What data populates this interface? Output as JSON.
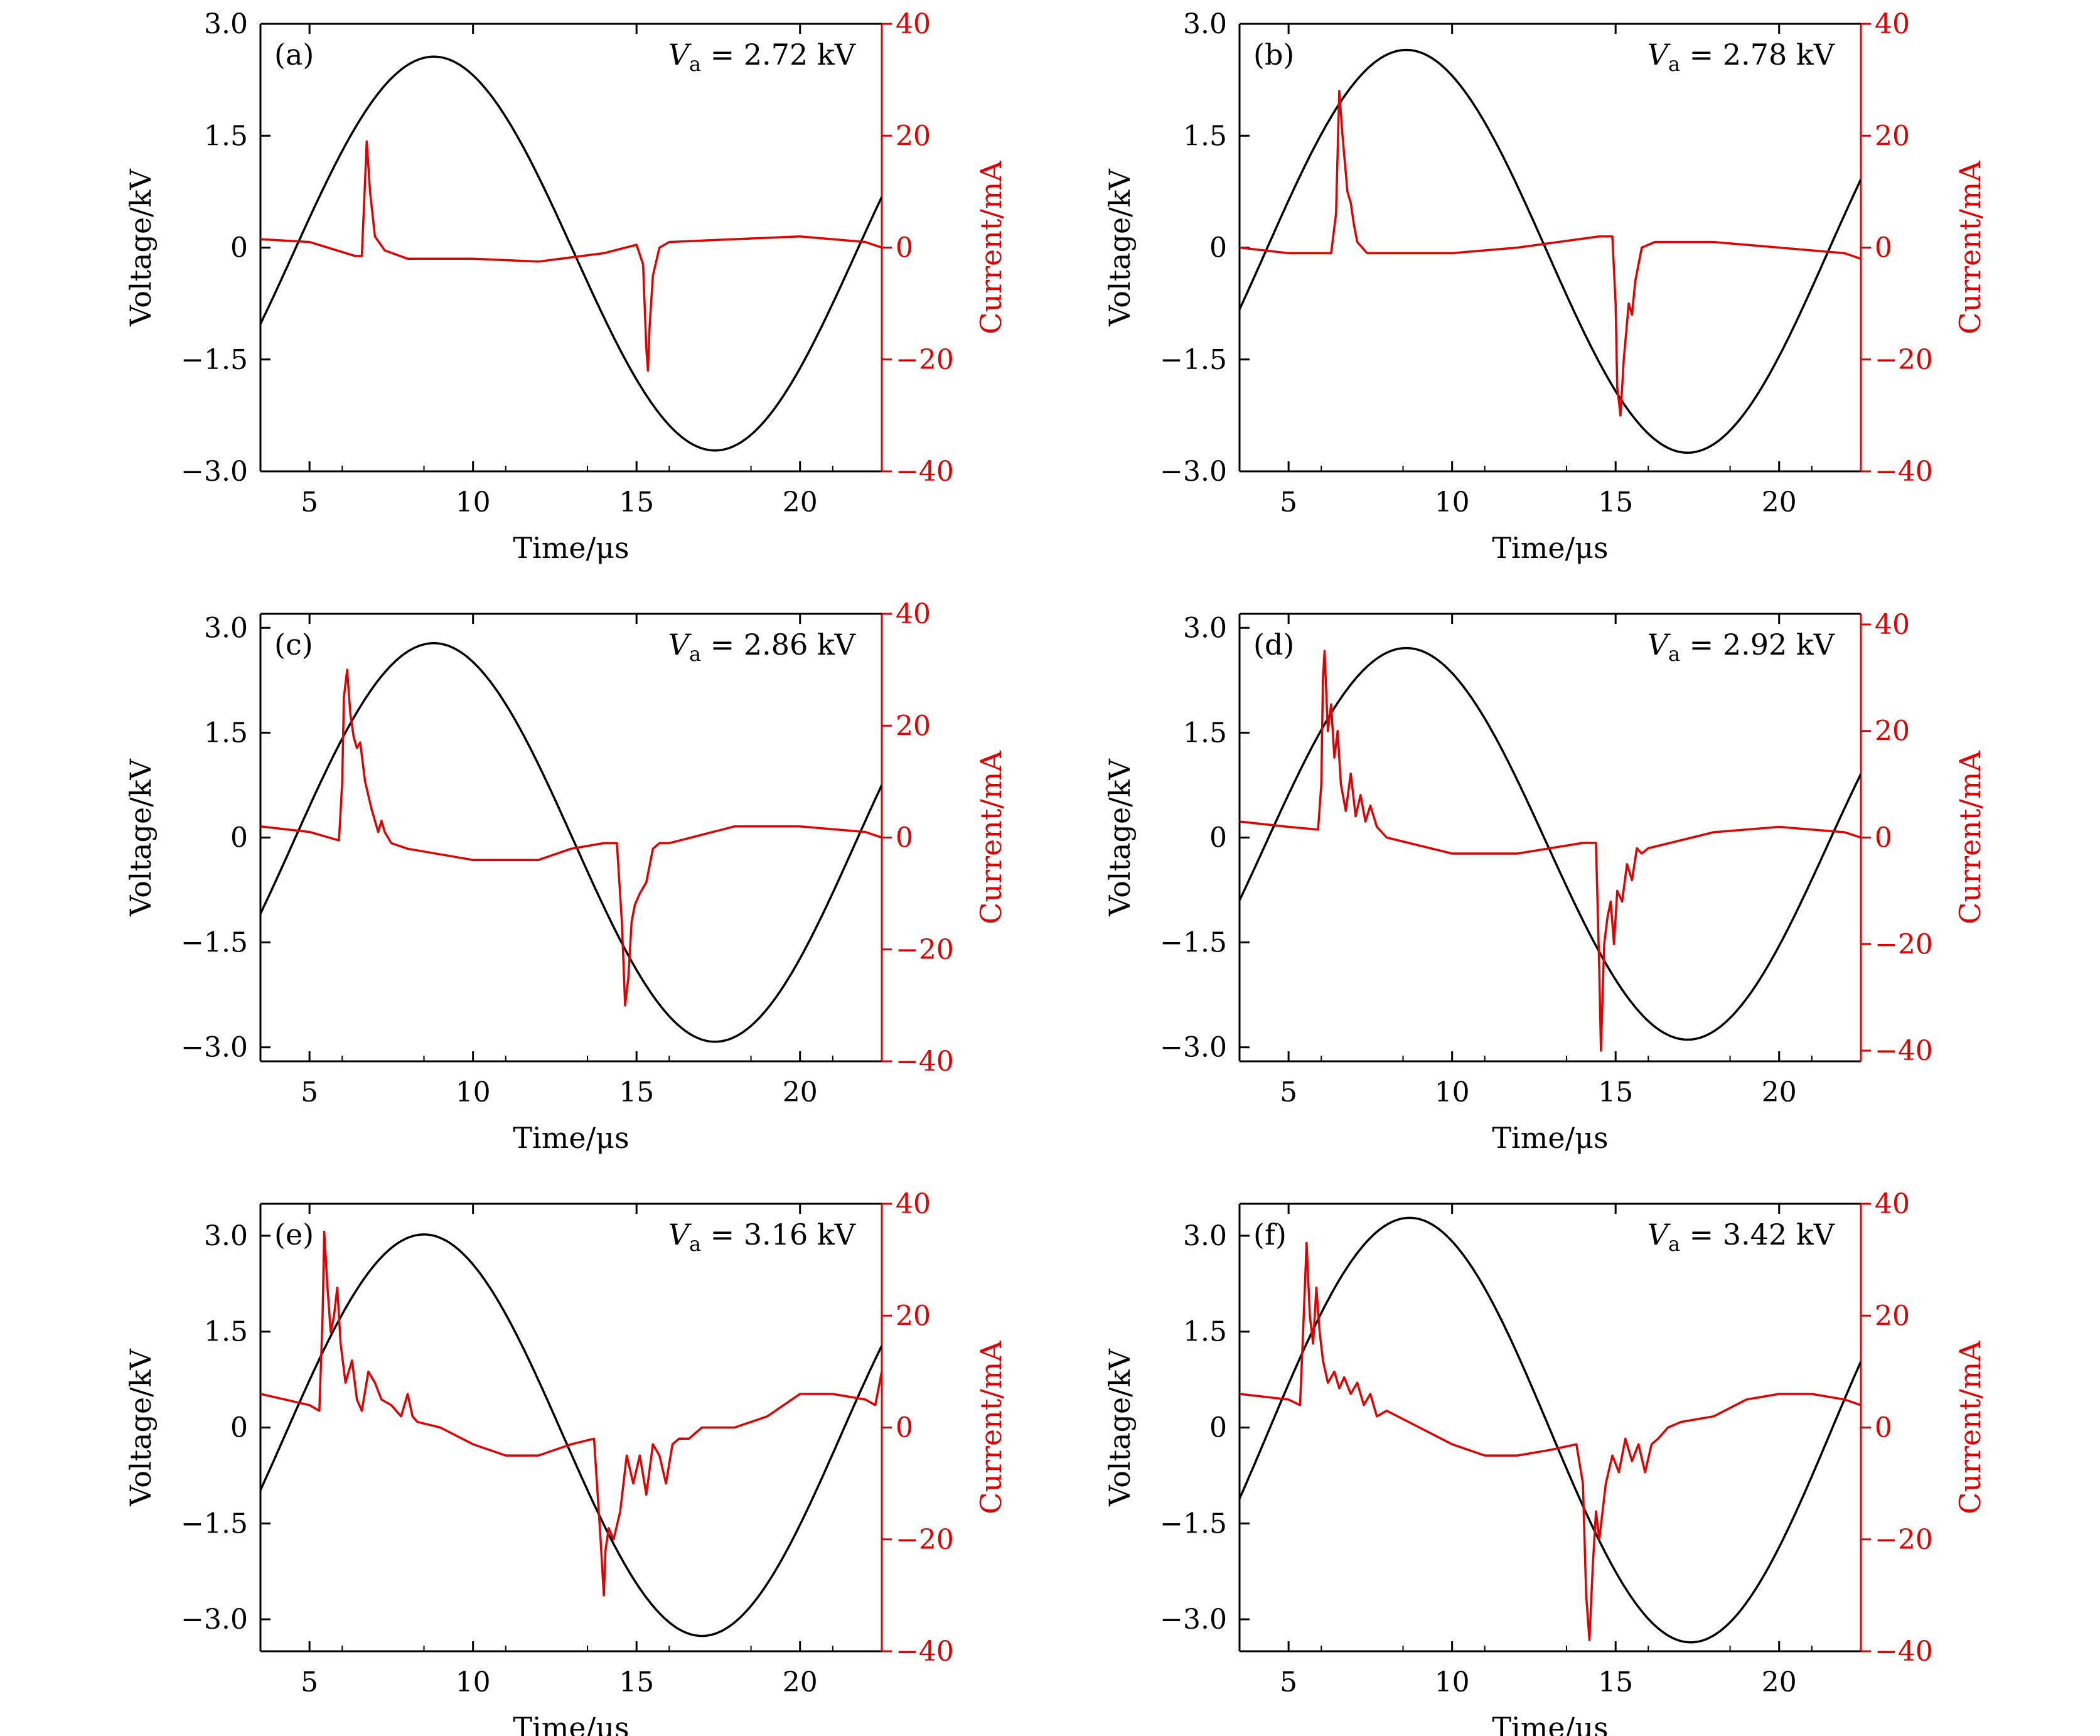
{
  "figure": {
    "colors": {
      "voltage": "#000000",
      "current": "#e00000",
      "frame": "#000000"
    },
    "shared_axes": {
      "xlabel": "Time/μs",
      "ylabel_left": "Voltage/kV",
      "ylabel_right": "Current/mA",
      "xlim": [
        3.5,
        22.5
      ],
      "xticks": [
        5,
        10,
        15,
        20
      ],
      "left_ticks": [
        3.0,
        1.5,
        0,
        -1.5,
        -3.0
      ],
      "left_tick_labels": [
        "3.0",
        "1.5",
        "0",
        "−1.5",
        "−3.0"
      ],
      "right_ticks": [
        40,
        20,
        0,
        -20,
        -40
      ],
      "right_tick_labels": [
        "40",
        "20",
        "0",
        "−20",
        "−40"
      ],
      "va_prefix": "V",
      "va_sub": "a",
      "va_equals": " = ",
      "va_unit": " kV"
    }
  },
  "chart_data": [
    {
      "type": "line",
      "panel": "(a)",
      "va_value": "2.72",
      "ylim_left": [
        -3.0,
        3.0
      ],
      "ylim_right": [
        -40,
        40
      ],
      "voltage": {
        "amplitude": 2.64,
        "peak_time": 8.8,
        "offset": -0.08,
        "period": 17.2
      },
      "current": {
        "x": [
          3.5,
          5,
          6.4,
          6.6,
          6.7,
          6.75,
          6.85,
          7.0,
          7.3,
          8,
          10,
          12,
          14,
          15.0,
          15.2,
          15.3,
          15.35,
          15.4,
          15.5,
          15.7,
          16,
          18,
          20,
          22,
          22.5
        ],
        "y": [
          1.5,
          1,
          -1.5,
          -1.5,
          12,
          19,
          10,
          2,
          -0.5,
          -2,
          -2,
          -2.5,
          -1,
          0.5,
          -3,
          -18,
          -22,
          -14,
          -5,
          0,
          1,
          1.5,
          2,
          1,
          0
        ]
      }
    },
    {
      "type": "line",
      "panel": "(b)",
      "va_value": "2.78",
      "ylim_left": [
        -3.0,
        3.0
      ],
      "ylim_right": [
        -40,
        40
      ],
      "voltage": {
        "amplitude": 2.7,
        "peak_time": 8.6,
        "offset": -0.05,
        "period": 17.2
      },
      "current": {
        "x": [
          3.5,
          5,
          6.3,
          6.45,
          6.55,
          6.65,
          6.8,
          6.9,
          7.0,
          7.1,
          7.4,
          8,
          10,
          12,
          14.5,
          14.9,
          15.0,
          15.05,
          15.15,
          15.25,
          15.4,
          15.5,
          15.6,
          15.8,
          16.2,
          18,
          20,
          22,
          22.5
        ],
        "y": [
          0,
          -1,
          -1,
          6,
          28,
          20,
          10,
          8,
          4,
          1,
          -1,
          -1,
          -1,
          0,
          2,
          2,
          -10,
          -25,
          -30,
          -20,
          -10,
          -12,
          -6,
          0,
          1,
          1,
          0,
          -1,
          -2
        ]
      }
    },
    {
      "type": "line",
      "panel": "(c)",
      "va_value": "2.86",
      "ylim_left": [
        -3.2,
        3.2
      ],
      "ylim_right": [
        -40,
        40
      ],
      "voltage": {
        "amplitude": 2.85,
        "peak_time": 8.8,
        "offset": -0.07,
        "period": 17.2
      },
      "current": {
        "x": [
          3.5,
          5,
          5.9,
          6.0,
          6.05,
          6.15,
          6.25,
          6.35,
          6.45,
          6.55,
          6.7,
          6.9,
          7.1,
          7.2,
          7.3,
          7.5,
          8,
          10,
          12,
          13,
          14.0,
          14.4,
          14.55,
          14.65,
          14.75,
          14.85,
          14.95,
          15.1,
          15.3,
          15.5,
          15.7,
          16,
          18,
          20,
          22,
          22.5
        ],
        "y": [
          2,
          1,
          -0.5,
          10,
          25,
          30,
          22,
          18,
          16,
          17,
          10,
          5,
          1,
          3,
          1,
          -1,
          -2,
          -4,
          -4,
          -2,
          -1,
          -1,
          -15,
          -30,
          -25,
          -15,
          -12,
          -10,
          -8,
          -2,
          -1,
          -1,
          2,
          2,
          1,
          0
        ]
      }
    },
    {
      "type": "line",
      "panel": "(d)",
      "va_value": "2.92",
      "ylim_left": [
        -3.2,
        3.2
      ],
      "ylim_right": [
        -42,
        42
      ],
      "voltage": {
        "amplitude": 2.8,
        "peak_time": 8.6,
        "offset": -0.09,
        "period": 17.2
      },
      "current": {
        "x": [
          3.5,
          5,
          5.9,
          6.0,
          6.05,
          6.1,
          6.2,
          6.3,
          6.4,
          6.5,
          6.6,
          6.75,
          6.9,
          7.05,
          7.2,
          7.35,
          7.5,
          7.7,
          8,
          10,
          12,
          13,
          14.0,
          14.4,
          14.5,
          14.55,
          14.65,
          14.75,
          14.85,
          14.95,
          15.05,
          15.2,
          15.35,
          15.5,
          15.65,
          15.8,
          16,
          18,
          20,
          22,
          22.5
        ],
        "y": [
          3,
          2,
          1.5,
          10,
          30,
          35,
          20,
          25,
          15,
          20,
          10,
          5,
          12,
          4,
          8,
          3,
          6,
          2,
          0,
          -3,
          -3,
          -2,
          -1,
          -1,
          -25,
          -40,
          -20,
          -15,
          -12,
          -20,
          -10,
          -12,
          -5,
          -8,
          -2,
          -3,
          -2,
          1,
          2,
          1,
          0
        ]
      }
    },
    {
      "type": "line",
      "panel": "(e)",
      "va_value": "3.16",
      "ylim_left": [
        -3.5,
        3.5
      ],
      "ylim_right": [
        -40,
        40
      ],
      "voltage": {
        "amplitude": 3.14,
        "peak_time": 8.5,
        "offset": -0.12,
        "period": 17.0
      },
      "current": {
        "x": [
          3.5,
          5,
          5.3,
          5.4,
          5.45,
          5.55,
          5.65,
          5.75,
          5.85,
          5.95,
          6.1,
          6.3,
          6.45,
          6.6,
          6.8,
          7.0,
          7.2,
          7.5,
          7.8,
          8.0,
          8.15,
          8.3,
          9,
          10,
          11,
          12,
          13,
          13.7,
          13.9,
          14.0,
          14.05,
          14.15,
          14.3,
          14.5,
          14.7,
          14.9,
          15.1,
          15.3,
          15.5,
          15.7,
          15.9,
          16.1,
          16.3,
          16.6,
          17,
          18,
          19,
          20,
          21,
          22,
          22.3,
          22.5
        ],
        "y": [
          6,
          4,
          3,
          20,
          35,
          25,
          17,
          20,
          25,
          15,
          8,
          12,
          5,
          3,
          10,
          8,
          5,
          4,
          2,
          6,
          2,
          1,
          0,
          -3,
          -5,
          -5,
          -3,
          -2,
          -20,
          -30,
          -22,
          -18,
          -20,
          -15,
          -5,
          -10,
          -5,
          -12,
          -3,
          -5,
          -10,
          -3,
          -2,
          -2,
          0,
          0,
          2,
          6,
          6,
          5,
          4,
          10
        ]
      }
    },
    {
      "type": "line",
      "panel": "(f)",
      "va_value": "3.42",
      "ylim_left": [
        -3.5,
        3.5
      ],
      "ylim_right": [
        -40,
        40
      ],
      "voltage": {
        "amplitude": 3.32,
        "peak_time": 8.7,
        "offset": -0.04,
        "period": 17.2
      },
      "current": {
        "x": [
          3.5,
          5,
          5.35,
          5.45,
          5.55,
          5.65,
          5.75,
          5.85,
          5.95,
          6.05,
          6.2,
          6.4,
          6.55,
          6.7,
          6.9,
          7.1,
          7.3,
          7.5,
          7.7,
          8,
          9,
          10,
          11,
          12,
          13,
          13.8,
          14.0,
          14.1,
          14.2,
          14.3,
          14.4,
          14.5,
          14.7,
          14.9,
          15.1,
          15.3,
          15.5,
          15.7,
          15.9,
          16.1,
          16.3,
          16.6,
          17,
          18,
          19,
          20,
          21,
          22,
          22.5
        ],
        "y": [
          6,
          5,
          4,
          18,
          33,
          20,
          15,
          25,
          17,
          12,
          8,
          10,
          7,
          9,
          6,
          8,
          4,
          6,
          2,
          3,
          0,
          -3,
          -5,
          -5,
          -4,
          -3,
          -10,
          -30,
          -38,
          -25,
          -15,
          -20,
          -10,
          -5,
          -8,
          -2,
          -6,
          -3,
          -8,
          -3,
          -2,
          0,
          1,
          2,
          5,
          6,
          6,
          5,
          4
        ]
      }
    }
  ]
}
